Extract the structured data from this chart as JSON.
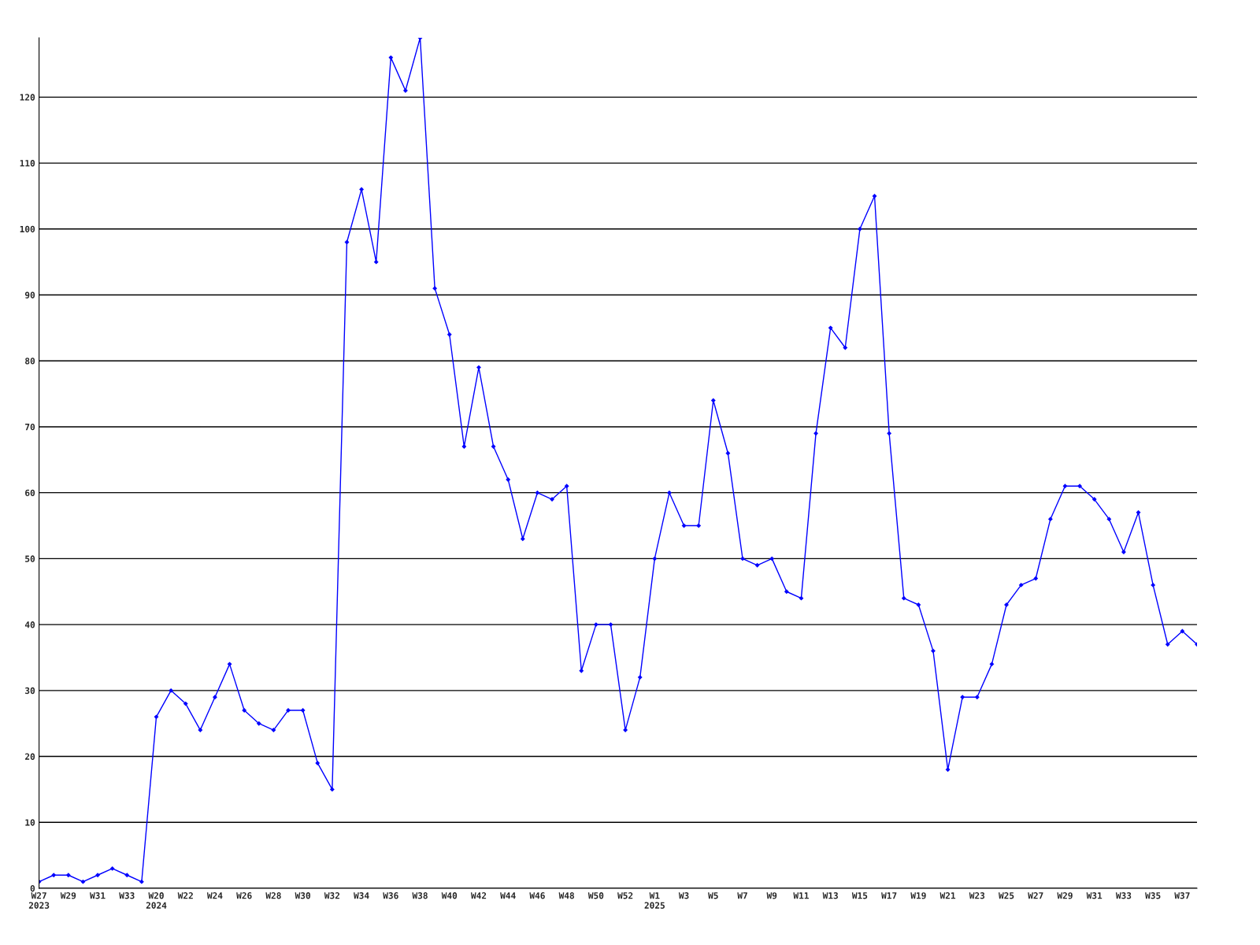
{
  "chart_data": {
    "type": "line",
    "categories": [
      "W27\n2023",
      null,
      "W29",
      null,
      "W31",
      null,
      "W33",
      null,
      "W20\n2024",
      null,
      "W22",
      null,
      "W24",
      null,
      "W26",
      null,
      "W28",
      null,
      "W30",
      null,
      "W32",
      null,
      "W34",
      null,
      "W36",
      null,
      "W38",
      null,
      "W40",
      null,
      "W42",
      null,
      "W44",
      null,
      "W46",
      null,
      "W48",
      null,
      "W50",
      null,
      "W52",
      null,
      "W1\n2025",
      null,
      "W3",
      null,
      "W5",
      null,
      "W7",
      null,
      "W9",
      null,
      "W11",
      null,
      "W13",
      null,
      "W15",
      null,
      "W17",
      null,
      "W19",
      null,
      "W21",
      null,
      "W23",
      null,
      "W25",
      null,
      "W27",
      null,
      "W29",
      null,
      "W31",
      null,
      "W33",
      null,
      "W35",
      null,
      "W37",
      null
    ],
    "series": [
      {
        "color": "#0000ff",
        "values": [
          1,
          2,
          2,
          1,
          2,
          3,
          2,
          1,
          26,
          30,
          28,
          24,
          29,
          34,
          27,
          25,
          24,
          27,
          27,
          19,
          15,
          98,
          106,
          95,
          126,
          121,
          129,
          91,
          84,
          67,
          79,
          67,
          62,
          53,
          60,
          59,
          61,
          33,
          40,
          40,
          24,
          32,
          50,
          60,
          55,
          55,
          74,
          66,
          50,
          49,
          50,
          45,
          44,
          69,
          85,
          82,
          100,
          105,
          69,
          44,
          43,
          36,
          18,
          29,
          29,
          34,
          43,
          46,
          47,
          56,
          61,
          61,
          59,
          56,
          51,
          57,
          46,
          37,
          39,
          37
        ]
      }
    ],
    "ylim": [
      0,
      129
    ],
    "yticks": [
      0,
      10,
      20,
      30,
      40,
      50,
      60,
      70,
      80,
      90,
      100,
      110,
      120
    ],
    "grid": "y",
    "marker": "diamond",
    "line_style": "solid"
  }
}
